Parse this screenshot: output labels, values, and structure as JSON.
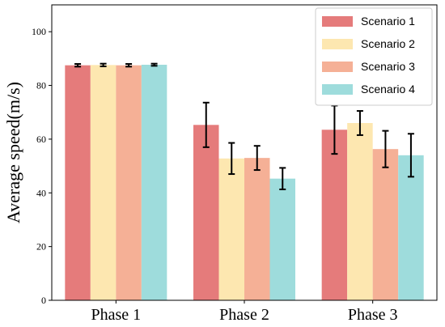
{
  "chart_data": {
    "type": "bar",
    "categories": [
      "Phase 1",
      "Phase 2",
      "Phase 3"
    ],
    "ylabel": "Average speed(m/s)",
    "ylim": [
      0,
      110
    ],
    "yticks": [
      0,
      20,
      40,
      60,
      80,
      100
    ],
    "grid": false,
    "legend_position": "top-right",
    "series": [
      {
        "name": "Scenario 1",
        "color": "#e57b7b",
        "values": [
          87.5,
          65.3,
          63.5
        ],
        "errors": [
          0.5,
          8.3,
          9.0
        ]
      },
      {
        "name": "Scenario 2",
        "color": "#fde7b0",
        "values": [
          87.6,
          52.8,
          66.0
        ],
        "errors": [
          0.5,
          5.8,
          4.5
        ]
      },
      {
        "name": "Scenario 3",
        "color": "#f5b096",
        "values": [
          87.5,
          53.0,
          56.3
        ],
        "errors": [
          0.5,
          4.5,
          6.8
        ]
      },
      {
        "name": "Scenario 4",
        "color": "#9edcdc",
        "values": [
          87.7,
          45.3,
          54.0
        ],
        "errors": [
          0.4,
          4.0,
          8.0
        ]
      }
    ]
  }
}
